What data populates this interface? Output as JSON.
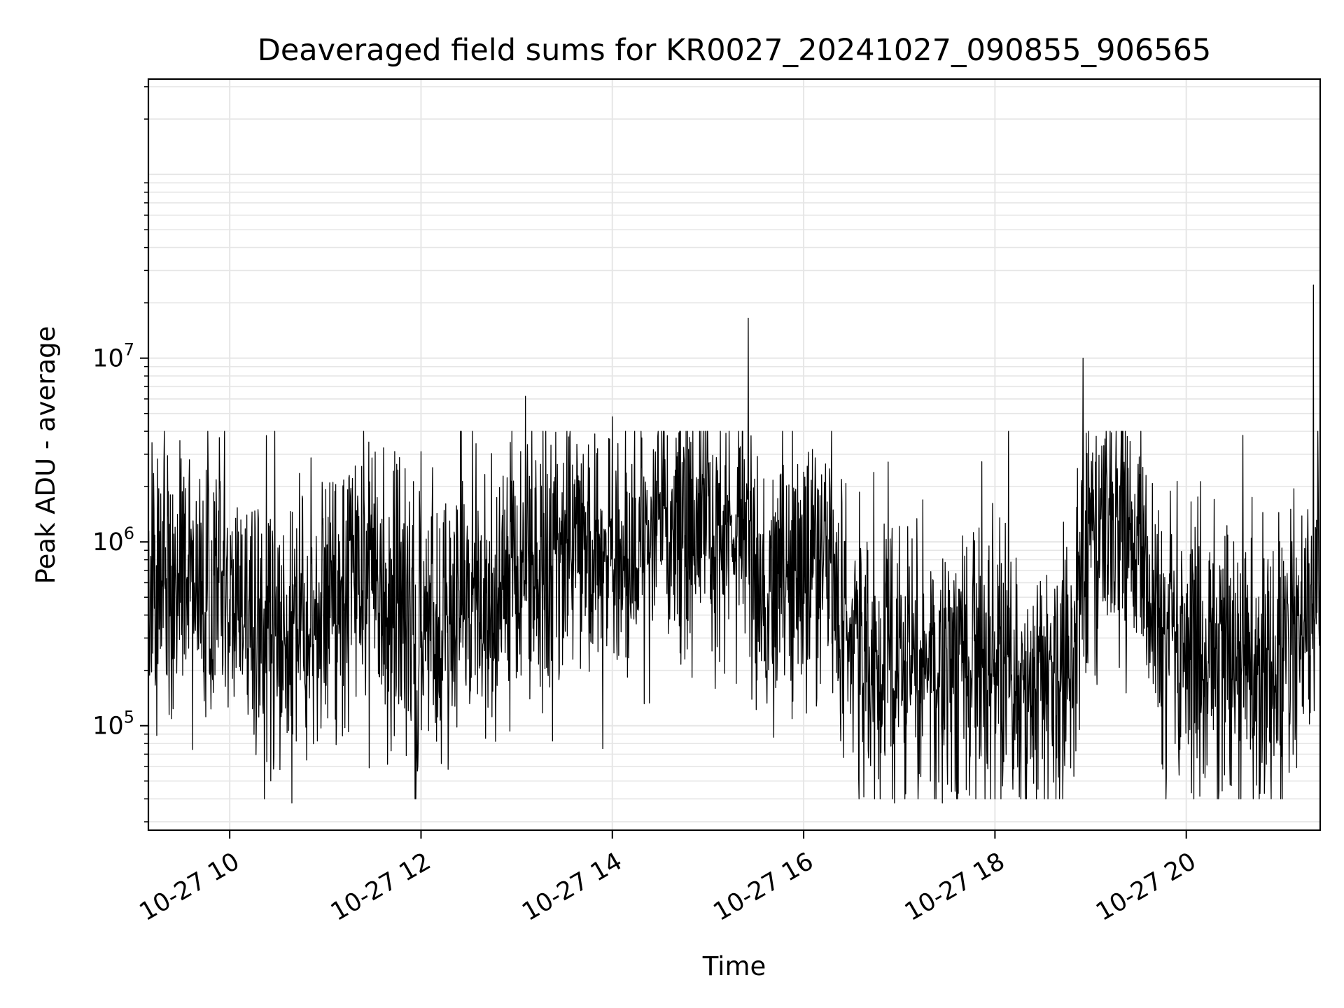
{
  "chart_data": {
    "type": "line",
    "title": "Deaveraged field sums for KR0027_20241027_090855_906565",
    "xlabel": "Time",
    "ylabel": "Peak ADU - average",
    "yscale": "log",
    "xlim": [
      9.15,
      21.4
    ],
    "ylim": [
      27000,
      330000000
    ],
    "grid": true,
    "line_color": "#000000",
    "grid_color": "#e6e6e6",
    "x_ticks": [
      {
        "value": 10,
        "label": "10-27 10"
      },
      {
        "value": 12,
        "label": "10-27 12"
      },
      {
        "value": 14,
        "label": "10-27 14"
      },
      {
        "value": 16,
        "label": "10-27 16"
      },
      {
        "value": 18,
        "label": "10-27 18"
      },
      {
        "value": 20,
        "label": "10-27 20"
      }
    ],
    "y_ticks": [
      {
        "value": 100000,
        "base": "10",
        "exp": "5"
      },
      {
        "value": 1000000,
        "base": "10",
        "exp": "6"
      },
      {
        "value": 10000000,
        "base": "10",
        "exp": "7"
      }
    ],
    "series": [
      {
        "points_per_hour": 240,
        "trend": [
          [
            9.15,
            550000
          ],
          [
            9.5,
            600000
          ],
          [
            10.0,
            560000
          ],
          [
            10.3,
            450000
          ],
          [
            10.55,
            220000
          ],
          [
            10.75,
            300000
          ],
          [
            11.0,
            450000
          ],
          [
            11.5,
            650000
          ],
          [
            11.85,
            500000
          ],
          [
            11.95,
            250000
          ],
          [
            12.2,
            450000
          ],
          [
            12.8,
            600000
          ],
          [
            13.3,
            850000
          ],
          [
            14.0,
            1000000
          ],
          [
            14.8,
            1300000
          ],
          [
            15.3,
            1000000
          ],
          [
            15.5,
            600000
          ],
          [
            15.8,
            800000
          ],
          [
            16.3,
            700000
          ],
          [
            16.5,
            250000
          ],
          [
            17.0,
            220000
          ],
          [
            17.5,
            200000
          ],
          [
            18.0,
            200000
          ],
          [
            18.3,
            160000
          ],
          [
            18.8,
            200000
          ],
          [
            18.9,
            700000
          ],
          [
            19.2,
            1300000
          ],
          [
            19.5,
            700000
          ],
          [
            19.7,
            350000
          ],
          [
            20.0,
            250000
          ],
          [
            20.5,
            220000
          ],
          [
            21.0,
            200000
          ],
          [
            21.1,
            300000
          ],
          [
            21.4,
            550000
          ]
        ],
        "spikes": [
          [
            9.58,
            2800000
          ],
          [
            10.65,
            38000
          ],
          [
            12.0,
            3100000
          ],
          [
            11.95,
            62000
          ],
          [
            13.09,
            6200000
          ],
          [
            13.9,
            75000
          ],
          [
            14.0,
            4800000
          ],
          [
            15.42,
            16500000
          ],
          [
            16.95,
            38000
          ],
          [
            17.45,
            38000
          ],
          [
            18.27,
            40000
          ],
          [
            18.92,
            10000000
          ],
          [
            21.33,
            25000000
          ]
        ]
      }
    ]
  }
}
